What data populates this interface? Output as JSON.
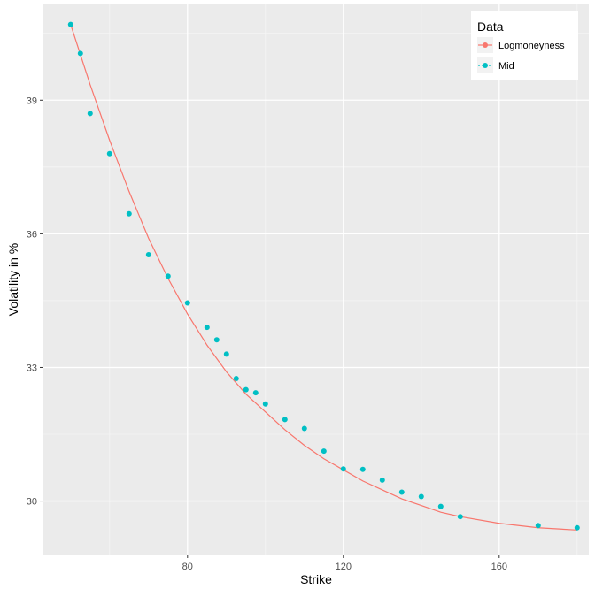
{
  "chart_data": {
    "type": "scatter",
    "xlabel": "Strike",
    "ylabel": "Volatility in %",
    "xlim": [
      43,
      183
    ],
    "ylim": [
      28.8,
      41.15
    ],
    "x_ticks": [
      80,
      120,
      160
    ],
    "y_ticks": [
      30,
      33,
      36,
      39
    ],
    "x_tick_labels": [
      "80",
      "120",
      "160"
    ],
    "y_tick_labels": [
      "30",
      "33",
      "36",
      "39"
    ],
    "grid": true,
    "legend": {
      "title": "Data",
      "position": "top-right",
      "entries": [
        {
          "label": "Logmoneyness",
          "color": "#F8766D",
          "style": "line"
        },
        {
          "label": "Mid",
          "color": "#00BFC4",
          "style": "point"
        }
      ]
    },
    "series": [
      {
        "name": "Logmoneyness",
        "kind": "line",
        "color": "#F8766D",
        "x": [
          50,
          55,
          60,
          65,
          70,
          75,
          80,
          85,
          90,
          95,
          100,
          105,
          110,
          115,
          120,
          125,
          130,
          135,
          140,
          145,
          150,
          160,
          170,
          180
        ],
        "y": [
          40.7,
          39.35,
          38.1,
          36.95,
          35.9,
          35.0,
          34.2,
          33.5,
          32.9,
          32.4,
          32.0,
          31.6,
          31.25,
          30.95,
          30.7,
          30.45,
          30.25,
          30.05,
          29.9,
          29.75,
          29.65,
          29.5,
          29.4,
          29.35
        ]
      },
      {
        "name": "Mid",
        "kind": "points",
        "color": "#00BFC4",
        "x": [
          50,
          52.5,
          55,
          60,
          65,
          70,
          75,
          80,
          85,
          87.5,
          90,
          92.5,
          95,
          97.5,
          100,
          105,
          110,
          115,
          120,
          125,
          130,
          135,
          140,
          145,
          150,
          170,
          180
        ],
        "y": [
          40.7,
          40.05,
          38.7,
          37.8,
          36.45,
          35.53,
          35.05,
          34.45,
          33.9,
          33.62,
          33.3,
          32.75,
          32.5,
          32.43,
          32.18,
          31.83,
          31.63,
          31.12,
          30.72,
          30.71,
          30.47,
          30.2,
          30.1,
          29.88,
          29.65,
          29.45,
          29.4
        ]
      }
    ]
  }
}
